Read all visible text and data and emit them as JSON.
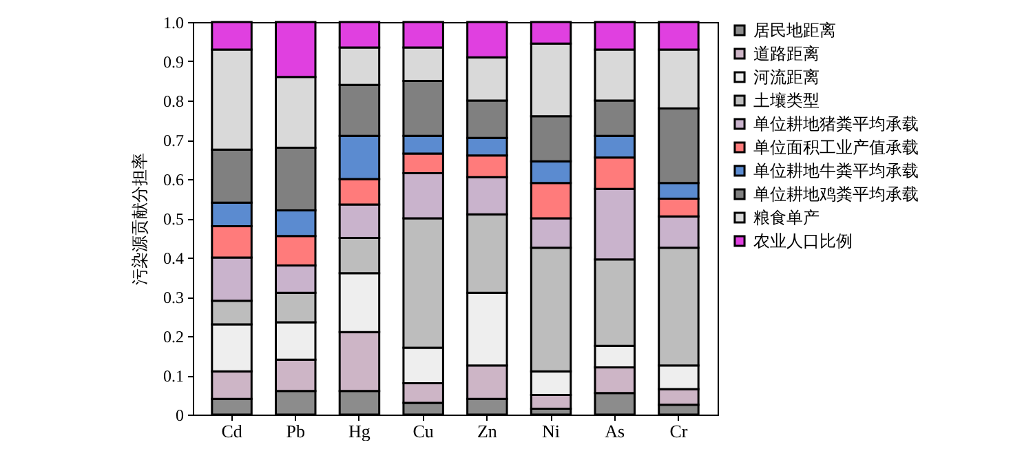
{
  "chart_data": {
    "type": "bar",
    "stacked": true,
    "ylabel": "污染源贡献分担率",
    "categories": [
      "Cd",
      "Pb",
      "Hg",
      "Cu",
      "Zn",
      "Ni",
      "As",
      "Cr"
    ],
    "ylim": [
      0,
      1
    ],
    "yticks": [
      0,
      0.1,
      0.2,
      0.3,
      0.4,
      0.5,
      0.6,
      0.7,
      0.8,
      0.9,
      {
        "value": 1,
        "label": "1.0"
      }
    ],
    "legend": "right",
    "grid": false,
    "series": [
      {
        "name": "居民地距离",
        "color": "#8c8c8c",
        "values": [
          0.04,
          0.06,
          0.06,
          0.03,
          0.04,
          0.015,
          0.055,
          0.025
        ]
      },
      {
        "name": "道路距离",
        "color": "#cdb5c6",
        "values": [
          0.07,
          0.08,
          0.15,
          0.05,
          0.085,
          0.035,
          0.065,
          0.04
        ]
      },
      {
        "name": "河流距离",
        "color": "#eeeeee",
        "values": [
          0.12,
          0.095,
          0.15,
          0.09,
          0.185,
          0.06,
          0.055,
          0.06
        ]
      },
      {
        "name": "土壤类型",
        "color": "#bdbdbd",
        "values": [
          0.06,
          0.075,
          0.09,
          0.33,
          0.2,
          0.315,
          0.22,
          0.3
        ]
      },
      {
        "name": "单位耕地猪粪平均承载",
        "color": "#c9b3cc",
        "values": [
          0.11,
          0.07,
          0.085,
          0.115,
          0.095,
          0.075,
          0.18,
          0.08
        ]
      },
      {
        "name": "单位面积工业产值承载",
        "color": "#ff7b7b",
        "values": [
          0.08,
          0.075,
          0.065,
          0.05,
          0.055,
          0.09,
          0.08,
          0.045
        ]
      },
      {
        "name": "单位耕地牛粪平均承载",
        "color": "#5b8bd0",
        "values": [
          0.06,
          0.065,
          0.11,
          0.045,
          0.045,
          0.055,
          0.055,
          0.04
        ]
      },
      {
        "name": "单位耕地鸡粪平均承载",
        "color": "#808080",
        "values": [
          0.135,
          0.16,
          0.13,
          0.14,
          0.095,
          0.115,
          0.09,
          0.19
        ]
      },
      {
        "name": "粮食单产",
        "color": "#d9d9d9",
        "values": [
          0.255,
          0.18,
          0.095,
          0.085,
          0.11,
          0.185,
          0.13,
          0.15
        ]
      },
      {
        "name": "农业人口比例",
        "color": "#e040e0",
        "values": [
          0.07,
          0.14,
          0.065,
          0.065,
          0.09,
          0.055,
          0.07,
          0.07
        ]
      }
    ]
  }
}
